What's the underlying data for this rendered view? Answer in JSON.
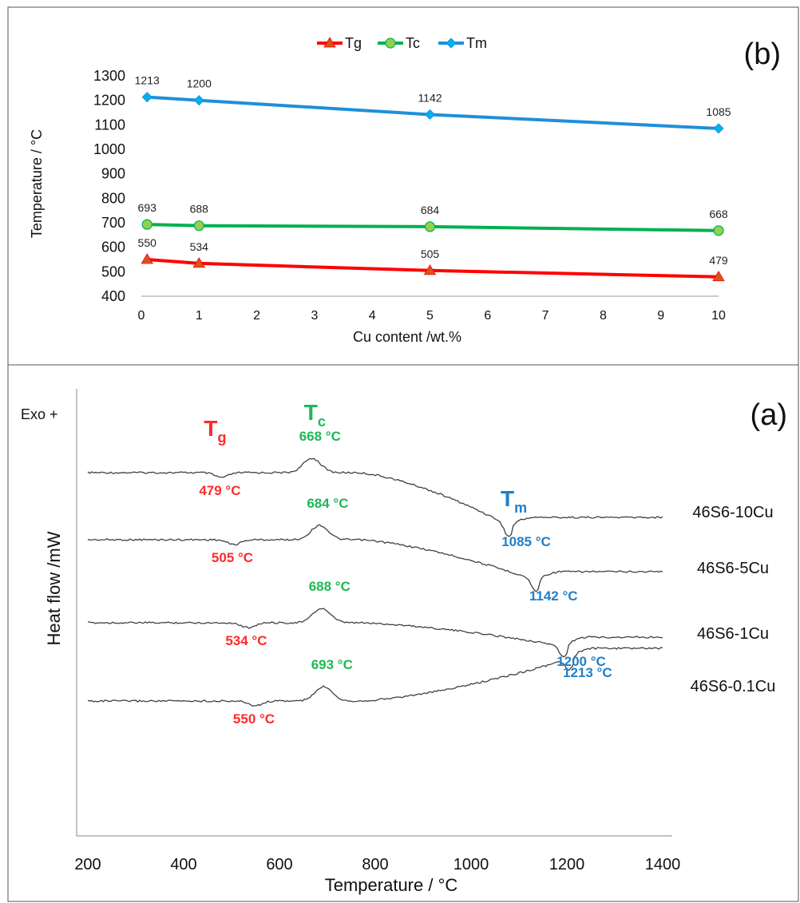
{
  "chart_data": [
    {
      "panel": "(b)",
      "type": "line",
      "xlabel": "Cu content /wt.%",
      "ylabel": "Temperature / °C",
      "xlim": [
        0,
        10
      ],
      "ylim": [
        400,
        1300
      ],
      "x_ticks": [
        0,
        1,
        2,
        3,
        4,
        5,
        6,
        7,
        8,
        9,
        10
      ],
      "y_ticks": [
        400,
        500,
        600,
        700,
        800,
        900,
        1000,
        1100,
        1200,
        1300
      ],
      "grid": false,
      "legend": "top-center",
      "series": [
        {
          "name": "Tg",
          "color": "#ff0000",
          "marker": "triangle",
          "marker_color": "#d9531e",
          "x": [
            0.1,
            1,
            5,
            10
          ],
          "values": [
            550,
            534,
            505,
            479
          ],
          "labels": [
            "550",
            "534",
            "505",
            "479"
          ]
        },
        {
          "name": "Tc",
          "color": "#00b050",
          "marker": "circle",
          "marker_color": "#92d050",
          "x": [
            0.1,
            1,
            5,
            10
          ],
          "values": [
            693,
            688,
            684,
            668
          ],
          "labels": [
            "693",
            "688",
            "684",
            "668"
          ]
        },
        {
          "name": "Tm",
          "color": "#1e90d8",
          "marker": "diamond",
          "marker_color": "#00b0f0",
          "x": [
            0.1,
            1,
            5,
            10
          ],
          "values": [
            1213,
            1200,
            1142,
            1085
          ],
          "labels": [
            "1213",
            "1200",
            "1142",
            "1085"
          ]
        }
      ]
    },
    {
      "panel": "(a)",
      "type": "line",
      "xlabel": "Temperature / °C",
      "ylabel": "Heat flow /mW",
      "exo_label": "Exo +",
      "xlim": [
        200,
        1400
      ],
      "x_ticks": [
        200,
        400,
        600,
        800,
        1000,
        1200,
        1400
      ],
      "header_labels": {
        "tg": {
          "main": "T",
          "sub": "g",
          "color": "#ff2a2a"
        },
        "tc": {
          "main": "T",
          "sub": "c",
          "color": "#1db954"
        },
        "tm": {
          "main": "T",
          "sub": "m",
          "color": "#1f7fc8"
        }
      },
      "series": [
        {
          "name": "46S6-10Cu",
          "tg": 479,
          "tc": 668,
          "tm": 1085,
          "tg_label": "479 °C",
          "tc_label": "668 °C",
          "tm_label": "1085 °C"
        },
        {
          "name": "46S6-5Cu",
          "tg": 505,
          "tc": 684,
          "tm": 1142,
          "tg_label": "505 °C",
          "tc_label": "684 °C",
          "tm_label": "1142 °C"
        },
        {
          "name": "46S6-1Cu",
          "tg": 534,
          "tc": 688,
          "tm": 1200,
          "tg_label": "534 °C",
          "tc_label": "688 °C",
          "tm_label": "1200 °C"
        },
        {
          "name": "46S6-0.1Cu",
          "tg": 550,
          "tc": 693,
          "tm": 1213,
          "tg_label": "550 °C",
          "tc_label": "693 °C",
          "tm_label": "1213 °C"
        }
      ]
    }
  ]
}
